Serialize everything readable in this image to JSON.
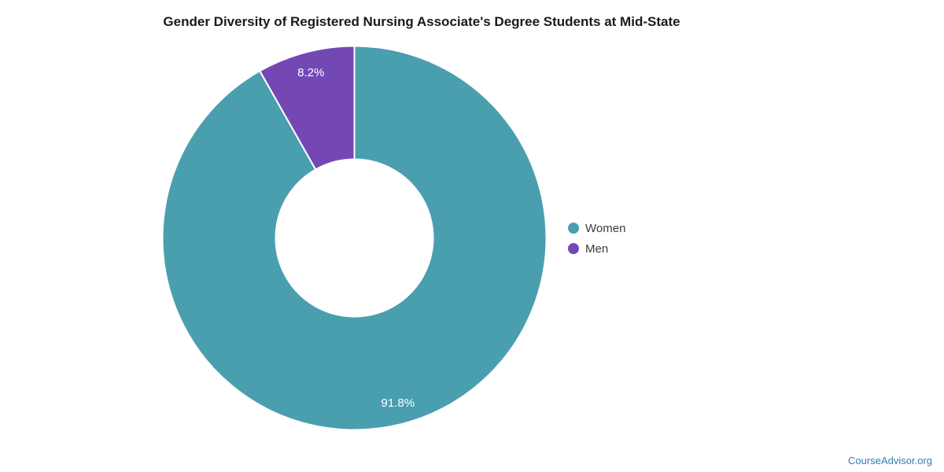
{
  "chart_data": {
    "type": "pie",
    "subtype": "donut",
    "title": "Gender Diversity of Registered Nursing Associate's Degree Students at Mid-State",
    "categories": [
      "Women",
      "Men"
    ],
    "values": [
      91.8,
      8.2
    ],
    "slice_labels": [
      "91.8%",
      "8.2%"
    ],
    "colors": [
      "#4A9FAF",
      "#7348B5"
    ],
    "border_color": "#ffffff",
    "label_color": "#ffffff",
    "legend_position": "right",
    "start_angle_deg": 0,
    "direction": "clockwise",
    "donut_hole_ratio": 0.41
  },
  "footer": {
    "link_label": "CourseAdvisor.org",
    "link_color": "#3080B2"
  }
}
